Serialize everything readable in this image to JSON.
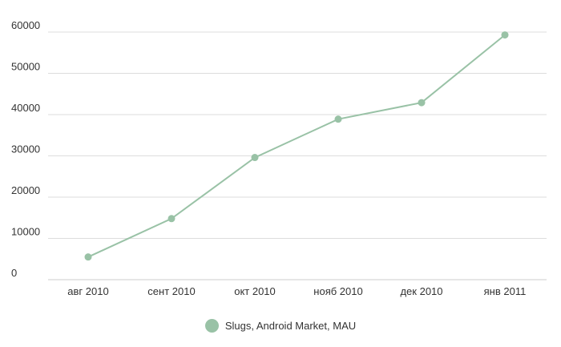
{
  "chart_data": {
    "type": "line",
    "categories": [
      "авг 2010",
      "сент 2010",
      "окт 2010",
      "нояб 2010",
      "дек 2010",
      "янв 2011"
    ],
    "series": [
      {
        "name": "Slugs, Android Market, MAU",
        "values": [
          5500,
          14800,
          29600,
          38900,
          42900,
          59300
        ]
      }
    ],
    "yticks": [
      0,
      10000,
      20000,
      30000,
      40000,
      50000,
      60000
    ],
    "ylim": [
      0,
      60000
    ],
    "grid": true,
    "legend_position": "bottom",
    "title": "",
    "xlabel": "",
    "ylabel": ""
  },
  "colors": {
    "series": "#99c2a6",
    "grid": "#dddddd",
    "axis": "#cccccc",
    "text": "#333333"
  }
}
